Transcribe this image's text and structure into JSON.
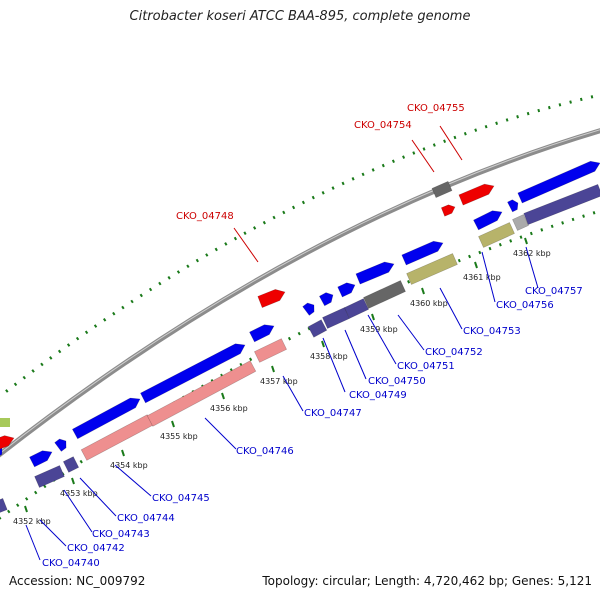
{
  "title": "Citrobacter koseri ATCC BAA-895, complete genome",
  "footer": {
    "accession": "Accession: NC_009792",
    "summary": "Topology: circular; Length: 4,720,462 bp; Genes: 5,121"
  },
  "colors": {
    "backbone": "#8c8c8c",
    "cds": "#0000ee",
    "rna": "#ee0000",
    "cog_purple": "#4b4596",
    "cog_gray": "#666666",
    "cog_olive": "#b7b36a",
    "cog_pink": "#ee8f8f",
    "label_blue": "#0000cc",
    "label_red": "#cc0000",
    "dots": "#1a7a1a"
  },
  "ticks": [
    {
      "label": "4352 kbp"
    },
    {
      "label": "4353 kbp"
    },
    {
      "label": "4354 kbp"
    },
    {
      "label": "4355 kbp"
    },
    {
      "label": "4356 kbp"
    },
    {
      "label": "4357 kbp"
    },
    {
      "label": "4358 kbp"
    },
    {
      "label": "4359 kbp"
    },
    {
      "label": "4360 kbp"
    },
    {
      "label": "4361 kbp"
    },
    {
      "label": "4362 kbp"
    }
  ],
  "gene_labels": [
    {
      "text": "CKO_04740",
      "color": "blue"
    },
    {
      "text": "CKO_04742",
      "color": "blue"
    },
    {
      "text": "CKO_04743",
      "color": "blue"
    },
    {
      "text": "CKO_04744",
      "color": "blue"
    },
    {
      "text": "CKO_04745",
      "color": "blue"
    },
    {
      "text": "CKO_04746",
      "color": "blue"
    },
    {
      "text": "CKO_04747",
      "color": "blue"
    },
    {
      "text": "CKO_04749",
      "color": "blue"
    },
    {
      "text": "CKO_04750",
      "color": "blue"
    },
    {
      "text": "CKO_04751",
      "color": "blue"
    },
    {
      "text": "CKO_04752",
      "color": "blue"
    },
    {
      "text": "CKO_04753",
      "color": "blue"
    },
    {
      "text": "CKO_04756",
      "color": "blue"
    },
    {
      "text": "CKO_04757",
      "color": "blue"
    },
    {
      "text": "CKO_04748",
      "color": "red"
    },
    {
      "text": "CKO_04754",
      "color": "red"
    },
    {
      "text": "CKO_04755",
      "color": "red"
    }
  ]
}
